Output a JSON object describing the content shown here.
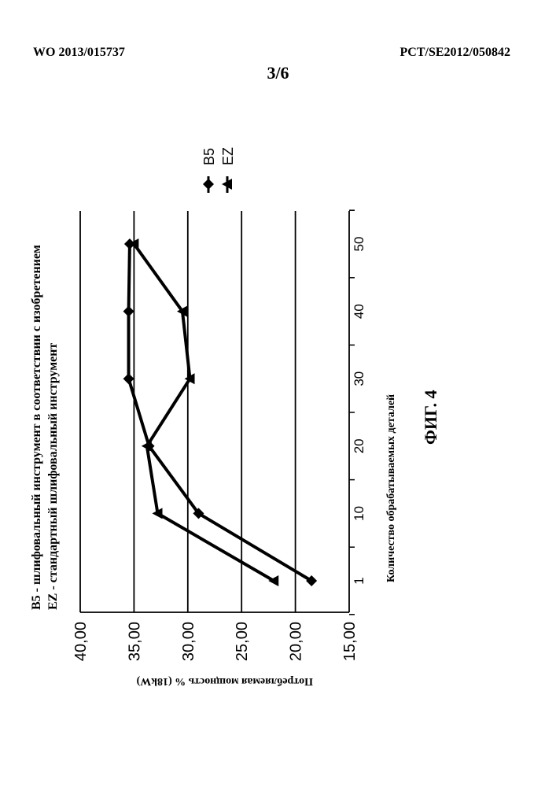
{
  "header": {
    "left": "WO 2013/015737",
    "right": "PCT/SE2012/050842",
    "page": "3/6"
  },
  "legend_notes": {
    "b5": "B5 - шлифовальный инструмент в соответствии с изобретением",
    "ez": "EZ - стандартный шлифовальный инструмент"
  },
  "figure_label": "ФИГ. 4",
  "chart_data": {
    "type": "line",
    "x": [
      1,
      10,
      20,
      30,
      40,
      50
    ],
    "x_tick_labels": [
      "1",
      "10",
      "20",
      "30",
      "40",
      "50"
    ],
    "xlabel": "Количество обрабатываемых деталей",
    "ylabel": "Потребляемая мощность % (18kW)",
    "ylim": [
      15,
      40
    ],
    "y_ticks": [
      15,
      20,
      25,
      30,
      35,
      40
    ],
    "y_tick_labels": [
      "15,00",
      "20,00",
      "25,00",
      "30,00",
      "35,00",
      "40,00"
    ],
    "grid": true,
    "orientation": "rotated 90° clockwise on page",
    "legend_position": "top",
    "series": [
      {
        "name": "B5",
        "marker": "diamond",
        "values": [
          18.5,
          29.0,
          33.6,
          35.5,
          35.5,
          35.4
        ]
      },
      {
        "name": "EZ",
        "marker": "triangle",
        "values": [
          22.0,
          32.8,
          33.8,
          29.8,
          30.5,
          35.0
        ]
      }
    ]
  }
}
